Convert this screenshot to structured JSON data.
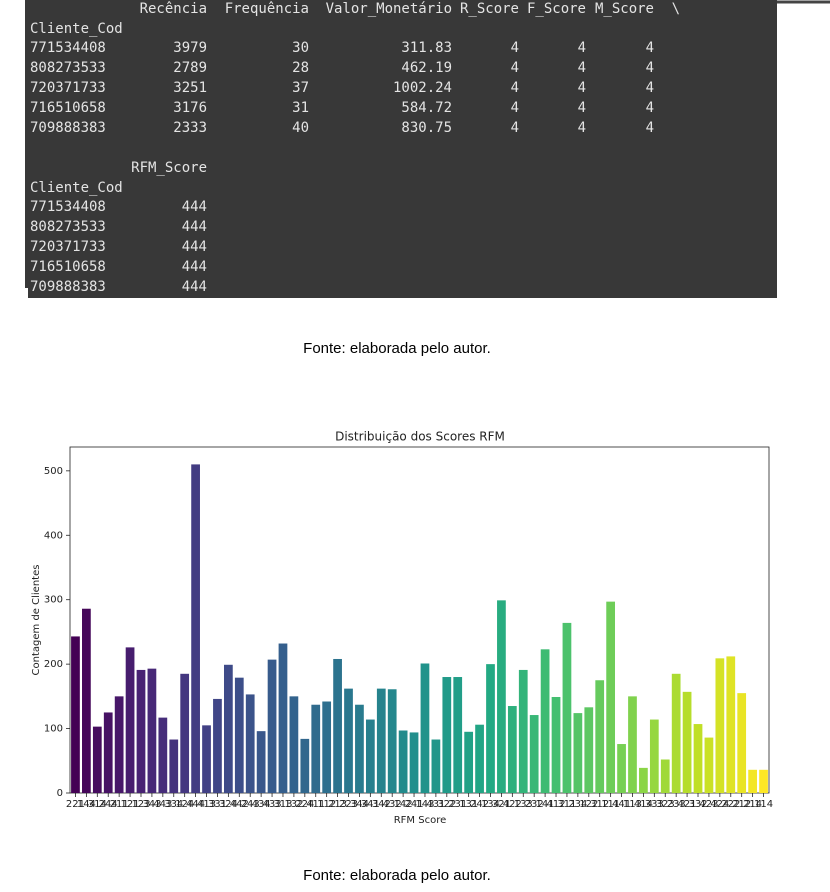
{
  "console": [
    {
      "columns": [
        "Recência",
        "Frequência",
        "Valor_Monetário",
        "R_Score",
        "F_Score",
        "M_Score",
        "\\"
      ],
      "index_name": "Cliente_Cod",
      "rows": [
        {
          "index": "771534408",
          "values": [
            3979,
            30,
            311.83,
            4,
            4,
            4
          ]
        },
        {
          "index": "808273533",
          "values": [
            2789,
            28,
            462.19,
            4,
            4,
            4
          ]
        },
        {
          "index": "720371733",
          "values": [
            3251,
            37,
            1002.24,
            4,
            4,
            4
          ]
        },
        {
          "index": "716510658",
          "values": [
            3176,
            31,
            584.72,
            4,
            4,
            4
          ]
        },
        {
          "index": "709888383",
          "values": [
            2333,
            40,
            830.75,
            4,
            4,
            4
          ]
        }
      ]
    },
    {
      "columns": [
        "RFM_Score"
      ],
      "index_name": "Cliente_Cod",
      "rows": [
        {
          "index": "771534408",
          "values": [
            444
          ]
        },
        {
          "index": "808273533",
          "values": [
            444
          ]
        },
        {
          "index": "720371733",
          "values": [
            444
          ]
        },
        {
          "index": "716510658",
          "values": [
            444
          ]
        },
        {
          "index": "709888383",
          "values": [
            444
          ]
        }
      ]
    }
  ],
  "captions": [
    "Fonte: elaborada pelo autor.",
    "Fonte: elaborada pelo autor."
  ],
  "chart_data": {
    "type": "bar",
    "title": "Distribuição dos Scores RFM",
    "x_label": "RFM Score",
    "y_label": "Contagem de Clientes",
    "palette": "viridis",
    "categories": [
      "221",
      "144",
      "314",
      "244",
      "211",
      "121",
      "123",
      "343",
      "443",
      "334",
      "124",
      "444",
      "413",
      "331",
      "324",
      "442",
      "243",
      "434",
      "433",
      "313",
      "132",
      "224",
      "411",
      "112",
      "213",
      "223",
      "344",
      "341",
      "342",
      "432",
      "142",
      "241",
      "143",
      "431",
      "322",
      "231",
      "131",
      "242",
      "134",
      "321",
      "422",
      "133",
      "232",
      "141",
      "412",
      "311",
      "234",
      "122",
      "312",
      "111",
      "441",
      "113",
      "414",
      "333",
      "323",
      "233",
      "421",
      "332",
      "423",
      "424",
      "222",
      "212",
      "214",
      "114"
    ],
    "values": [
      243,
      286,
      103,
      125,
      150,
      226,
      191,
      193,
      117,
      83,
      185,
      510,
      105,
      146,
      199,
      179,
      153,
      96,
      207,
      232,
      150,
      84,
      137,
      142,
      208,
      162,
      137,
      114,
      162,
      161,
      97,
      94,
      201,
      83,
      180,
      180,
      95,
      106,
      200,
      299,
      135,
      191,
      121,
      223,
      149,
      264,
      124,
      133,
      175,
      297,
      76,
      150,
      39,
      114,
      52,
      185,
      157,
      107,
      86,
      209,
      212,
      155,
      36,
      36
    ],
    "ylim": [
      0,
      537
    ],
    "yticks": [
      0,
      100,
      200,
      300,
      400,
      500
    ],
    "grid": false
  }
}
